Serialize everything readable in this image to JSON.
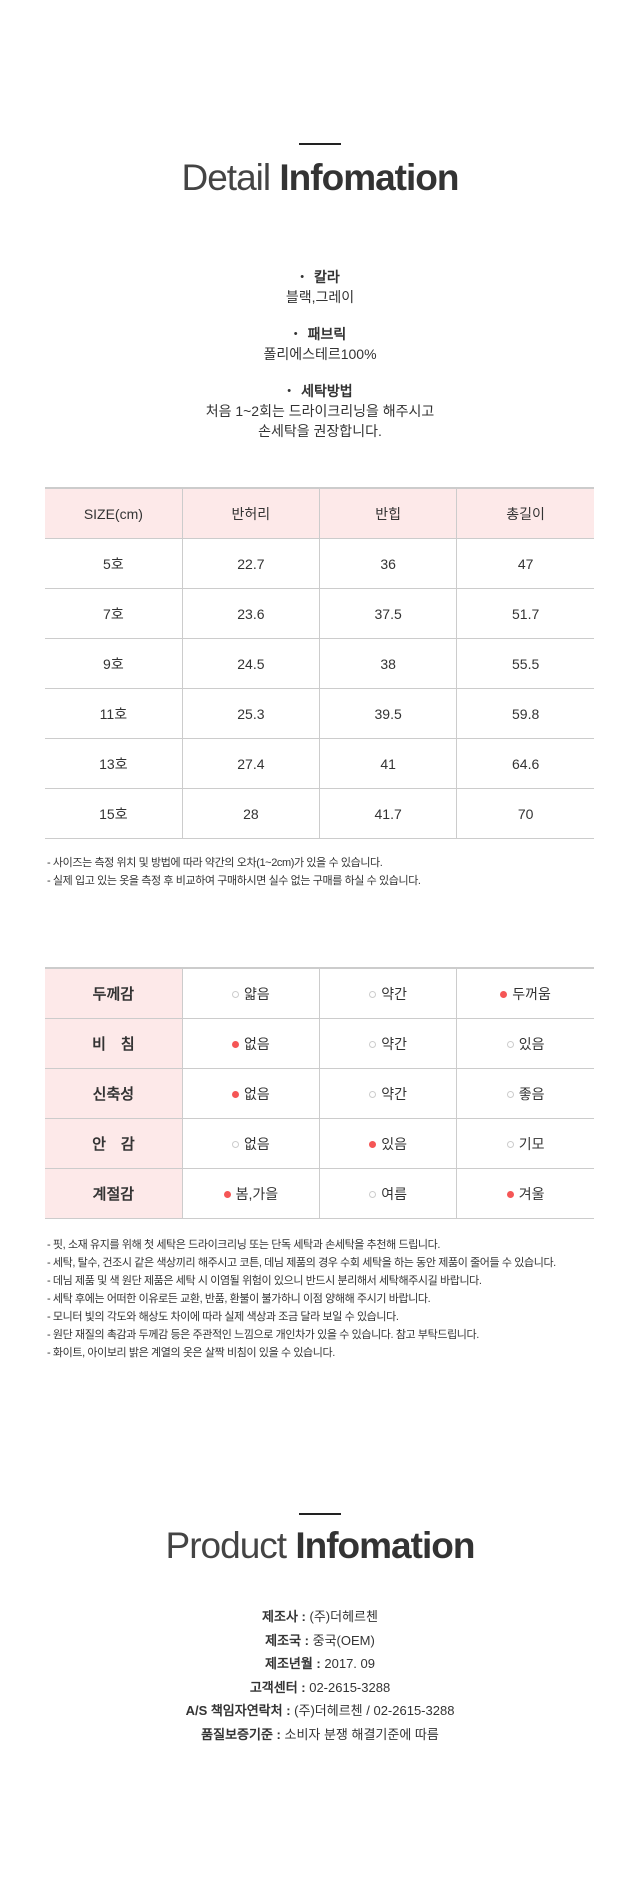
{
  "detail": {
    "title_light": "Detail",
    "title_bold": "Infomation",
    "specs": [
      {
        "label": "칼라",
        "value": "블랙,그레이"
      },
      {
        "label": "패브릭",
        "value": "폴리에스테르100%"
      },
      {
        "label": "세탁방법",
        "value": "처음 1~2회는 드라이크리닝을 해주시고",
        "value2": "손세탁을 권장합니다."
      }
    ]
  },
  "size_table": {
    "headers": [
      "SIZE(cm)",
      "반허리",
      "반힙",
      "총길이"
    ],
    "rows": [
      [
        "5호",
        "22.7",
        "36",
        "47"
      ],
      [
        "7호",
        "23.6",
        "37.5",
        "51.7"
      ],
      [
        "9호",
        "24.5",
        "38",
        "55.5"
      ],
      [
        "11호",
        "25.3",
        "39.5",
        "59.8"
      ],
      [
        "13호",
        "27.4",
        "41",
        "64.6"
      ],
      [
        "15호",
        "28",
        "41.7",
        "70"
      ]
    ],
    "notes": [
      "- 사이즈는 측정 위치 및 방법에 따라 약간의 오차(1~2cm)가 있을 수 있습니다.",
      "- 실제 입고 있는 옷을 측정 후 비교하여 구매하시면 실수 없는 구매를 하실 수 있습니다."
    ]
  },
  "feel_table": {
    "rows": [
      {
        "label": "두께감",
        "options": [
          {
            "text": "얇음",
            "on": false
          },
          {
            "text": "약간",
            "on": false
          },
          {
            "text": "두꺼움",
            "on": true
          }
        ]
      },
      {
        "label": "비　침",
        "options": [
          {
            "text": "없음",
            "on": true
          },
          {
            "text": "약간",
            "on": false
          },
          {
            "text": "있음",
            "on": false
          }
        ]
      },
      {
        "label": "신축성",
        "options": [
          {
            "text": "없음",
            "on": true
          },
          {
            "text": "약간",
            "on": false
          },
          {
            "text": "좋음",
            "on": false
          }
        ]
      },
      {
        "label": "안　감",
        "options": [
          {
            "text": "없음",
            "on": false
          },
          {
            "text": "있음",
            "on": true
          },
          {
            "text": "기모",
            "on": false
          }
        ]
      },
      {
        "label": "계절감",
        "options": [
          {
            "text": "봄,가을",
            "on": true
          },
          {
            "text": "여름",
            "on": false
          },
          {
            "text": "겨울",
            "on": true
          }
        ]
      }
    ],
    "notes": [
      "- 핏, 소재 유지를 위해 첫 세탁은 드라이크리닝 또는 단독 세탁과 손세탁을 추천해 드립니다.",
      "- 세탁, 탈수, 건조시 같은 색상끼리 해주시고 코튼, 데님 제품의 경우 수회 세탁을 하는 동안 제품이 줄어들 수 있습니다.",
      "- 데님 제품 및 색 원단 제품은 세탁 시 이염될 위험이 있으니 반드시 분리해서 세탁해주시길 바랍니다.",
      "- 세탁 후에는 어떠한 이유로든 교환, 반품, 환불이 불가하니 이점 양해해 주시기 바랍니다.",
      "- 모니터 빛의 각도와 해상도 차이에 따라 실제 색상과 조금 달라 보일 수 있습니다.",
      "- 원단 재질의 촉감과 두께감 등은 주관적인 느낌으로 개인차가 있을 수 있습니다. 참고 부탁드립니다.",
      "- 화이트, 아이보리 밝은 계열의 옷은 살짝 비침이 있을 수 있습니다."
    ]
  },
  "product": {
    "title_light": "Product",
    "title_bold": "Infomation",
    "lines": [
      {
        "label": "제조사 :",
        "value": "(주)더헤르첸"
      },
      {
        "label": "제조국 :",
        "value": "중국(OEM)"
      },
      {
        "label": "제조년월 :",
        "value": "2017. 09"
      },
      {
        "label": "고객센터 :",
        "value": "02-2615-3288"
      },
      {
        "label": "A/S 책임자연락처 :",
        "value": "(주)더헤르첸 / 02-2615-3288"
      },
      {
        "label": "품질보증기준 :",
        "value": "소비자 분쟁 해결기준에 따름"
      }
    ]
  },
  "colors": {
    "header_bg": "#fde9e9",
    "dot_on": "#f55656",
    "border": "#cccccc"
  }
}
